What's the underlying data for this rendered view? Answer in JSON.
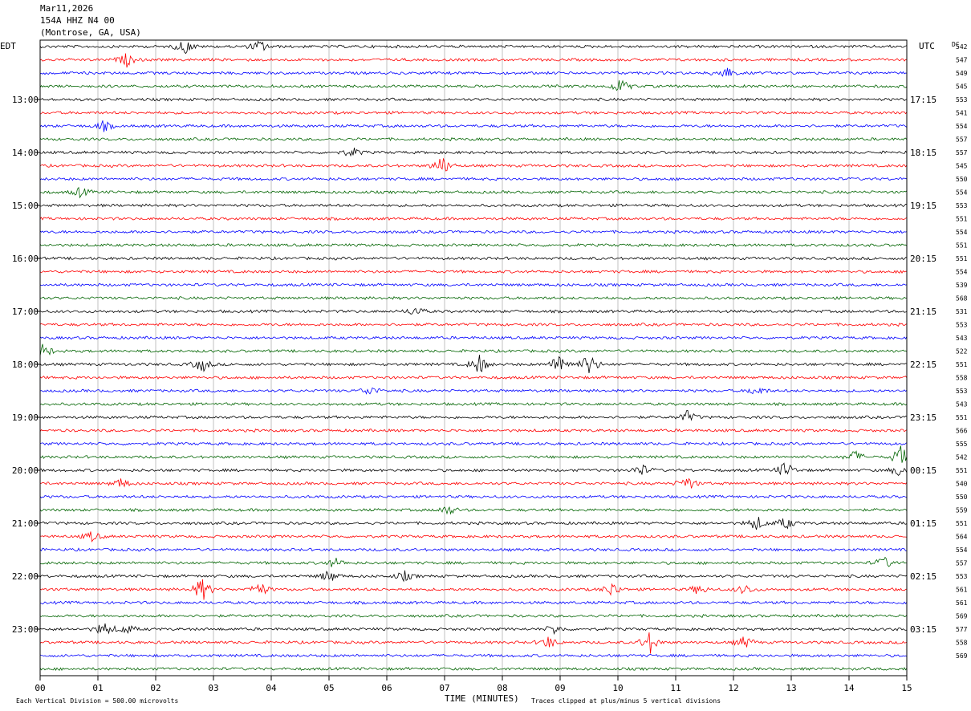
{
  "header": {
    "date": "Mar11,2026",
    "station": "154A HHZ N4 00",
    "location": "(Montrose, GA, USA)"
  },
  "left_tz": "EDT",
  "right_tz": "UTC",
  "dc_label": "DC",
  "footer": {
    "scale": "Each Vertical Division =  500.00 microvolts",
    "clip": "Traces clipped at plus/minus 5 vertical divisions"
  },
  "trace_colors": [
    "#000000",
    "#ff0000",
    "#0000ff",
    "#006400"
  ],
  "chart_data": {
    "type": "line",
    "xlabel": "TIME (MINUTES)",
    "x_ticks": [
      "00",
      "01",
      "02",
      "03",
      "04",
      "05",
      "06",
      "07",
      "08",
      "09",
      "10",
      "11",
      "12",
      "13",
      "14",
      "15"
    ],
    "xlim": [
      0,
      15
    ],
    "left_time_labels": [
      "13:00",
      "14:00",
      "15:00",
      "16:00",
      "17:00",
      "18:00",
      "19:00",
      "20:00",
      "21:00",
      "22:00",
      "23:00"
    ],
    "right_time_labels": [
      "17:15",
      "18:15",
      "19:15",
      "20:15",
      "21:15",
      "22:15",
      "23:15",
      "00:15",
      "01:15",
      "02:15",
      "03:15"
    ],
    "dc_offsets": [
      "542",
      "547",
      "549",
      "545",
      "553",
      "541",
      "554",
      "557",
      "557",
      "545",
      "550",
      "554",
      "553",
      "551",
      "554",
      "551",
      "551",
      "554",
      "539",
      "568",
      "531",
      "553",
      "543",
      "522",
      "551",
      "558",
      "553",
      "543",
      "551",
      "566",
      "555",
      "542",
      "551",
      "540",
      "550",
      "559",
      "551",
      "564",
      "554",
      "557",
      "553",
      "561",
      "561",
      "569",
      "577",
      "558",
      "569"
    ],
    "traces_count": 48,
    "label_every": 4,
    "label_start_index": 4,
    "events": [
      {
        "trace": 0,
        "minute": 2.5,
        "amp": 3
      },
      {
        "trace": 0,
        "minute": 3.8,
        "amp": 2.5
      },
      {
        "trace": 1,
        "minute": 1.5,
        "amp": 2.5
      },
      {
        "trace": 2,
        "minute": 11.85,
        "amp": 3
      },
      {
        "trace": 3,
        "minute": 10.05,
        "amp": 3
      },
      {
        "trace": 6,
        "minute": 1.1,
        "amp": 2
      },
      {
        "trace": 8,
        "minute": 5.4,
        "amp": 2
      },
      {
        "trace": 9,
        "minute": 6.95,
        "amp": 4
      },
      {
        "trace": 11,
        "minute": 0.7,
        "amp": 2
      },
      {
        "trace": 20,
        "minute": 6.5,
        "amp": 2
      },
      {
        "trace": 23,
        "minute": 0.05,
        "amp": 3
      },
      {
        "trace": 24,
        "minute": 2.8,
        "amp": 3
      },
      {
        "trace": 24,
        "minute": 7.6,
        "amp": 4
      },
      {
        "trace": 24,
        "minute": 9.0,
        "amp": 5
      },
      {
        "trace": 24,
        "minute": 9.5,
        "amp": 4.5
      },
      {
        "trace": 26,
        "minute": 5.7,
        "amp": 2
      },
      {
        "trace": 26,
        "minute": 12.4,
        "amp": 2
      },
      {
        "trace": 28,
        "minute": 11.2,
        "amp": 2.5
      },
      {
        "trace": 31,
        "minute": 14.1,
        "amp": 2.5
      },
      {
        "trace": 31,
        "minute": 14.9,
        "amp": 5
      },
      {
        "trace": 32,
        "minute": 10.4,
        "amp": 2.5
      },
      {
        "trace": 32,
        "minute": 12.9,
        "amp": 3.5
      },
      {
        "trace": 32,
        "minute": 14.9,
        "amp": 3
      },
      {
        "trace": 33,
        "minute": 11.2,
        "amp": 3
      },
      {
        "trace": 33,
        "minute": 1.4,
        "amp": 2
      },
      {
        "trace": 35,
        "minute": 7.05,
        "amp": 2
      },
      {
        "trace": 36,
        "minute": 12.4,
        "amp": 3
      },
      {
        "trace": 36,
        "minute": 12.9,
        "amp": 2.5
      },
      {
        "trace": 37,
        "minute": 0.9,
        "amp": 2
      },
      {
        "trace": 39,
        "minute": 5.1,
        "amp": 2
      },
      {
        "trace": 39,
        "minute": 14.6,
        "amp": 2.5
      },
      {
        "trace": 40,
        "minute": 5.0,
        "amp": 2.5
      },
      {
        "trace": 40,
        "minute": 6.3,
        "amp": 2
      },
      {
        "trace": 41,
        "minute": 2.8,
        "amp": 5
      },
      {
        "trace": 41,
        "minute": 3.8,
        "amp": 3
      },
      {
        "trace": 41,
        "minute": 9.9,
        "amp": 3
      },
      {
        "trace": 41,
        "minute": 11.4,
        "amp": 2
      },
      {
        "trace": 41,
        "minute": 12.2,
        "amp": 2
      },
      {
        "trace": 44,
        "minute": 1.1,
        "amp": 3
      },
      {
        "trace": 44,
        "minute": 1.5,
        "amp": 2
      },
      {
        "trace": 44,
        "minute": 8.9,
        "amp": 1.8
      },
      {
        "trace": 45,
        "minute": 8.8,
        "amp": 2.5
      },
      {
        "trace": 45,
        "minute": 10.55,
        "amp": 4.5
      },
      {
        "trace": 45,
        "minute": 12.2,
        "amp": 2.5
      }
    ]
  }
}
